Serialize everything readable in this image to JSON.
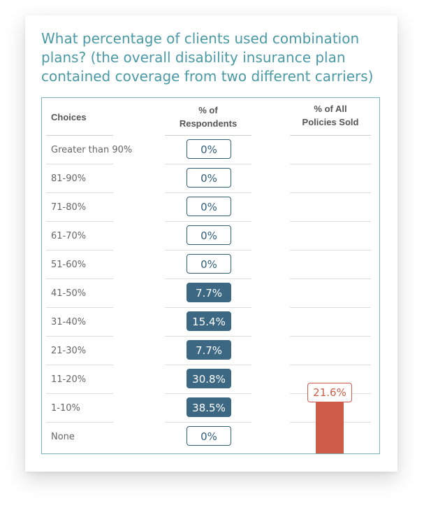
{
  "title": "What percentage of clients used combination plans? (the overall disability insurance plan contained coverage from two different carriers)",
  "columns": {
    "choices": "Choices",
    "respondents": "% of\nRespondents",
    "policies": "% of All\nPolicies Sold"
  },
  "colors": {
    "title": "#4a9aa6",
    "frame": "#7ab4bd",
    "respondent_filled": "#3c6884",
    "respondent_outline": "#2f5f7a",
    "policy": "#cd5d48"
  },
  "chart_data": {
    "type": "table",
    "title": "What percentage of clients used combination plans? (the overall disability insurance plan contained coverage from two different carriers)",
    "categories": [
      "Greater than 90%",
      "81-90%",
      "71-80%",
      "61-70%",
      "51-60%",
      "41-50%",
      "31-40%",
      "21-30%",
      "11-20%",
      "1-10%",
      "None"
    ],
    "series": [
      {
        "name": "% of Respondents",
        "values": [
          0,
          0,
          0,
          0,
          0,
          7.7,
          15.4,
          7.7,
          30.8,
          38.5,
          0
        ],
        "labels": [
          "0%",
          "0%",
          "0%",
          "0%",
          "0%",
          "7.7%",
          "15.4%",
          "7.7%",
          "30.8%",
          "38.5%",
          "0%"
        ]
      },
      {
        "name": "% of All Policies Sold",
        "value": 21.6,
        "label": "21.6%"
      }
    ]
  }
}
